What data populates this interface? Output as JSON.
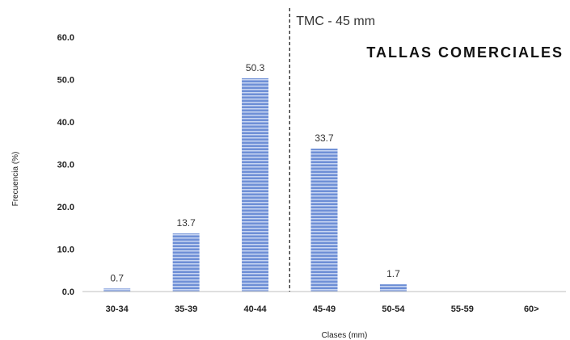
{
  "chart_data": {
    "type": "bar",
    "categories": [
      "30-34",
      "35-39",
      "40-44",
      "45-49",
      "50-54",
      "55-59",
      "60>"
    ],
    "values": [
      0.7,
      13.7,
      50.3,
      33.7,
      1.7,
      0,
      0
    ],
    "data_labels": [
      "0.7",
      "13.7",
      "50.3",
      "33.7",
      "1.7",
      "",
      ""
    ],
    "xlabel": "Clases (mm)",
    "ylabel": "Frecuencia (%)",
    "ylim": [
      0,
      60
    ],
    "yticks": [
      "0.0",
      "10.0",
      "20.0",
      "30.0",
      "40.0",
      "50.0",
      "60.0"
    ],
    "grid": false,
    "annotation": {
      "label": "TMC - 45 mm",
      "boundary_between": [
        "40-44",
        "45-49"
      ]
    },
    "side_title": "TALLAS COMERCIALES",
    "bar_color": "#6e8fd6",
    "bar_stripe_color": "#dfe8fa"
  }
}
